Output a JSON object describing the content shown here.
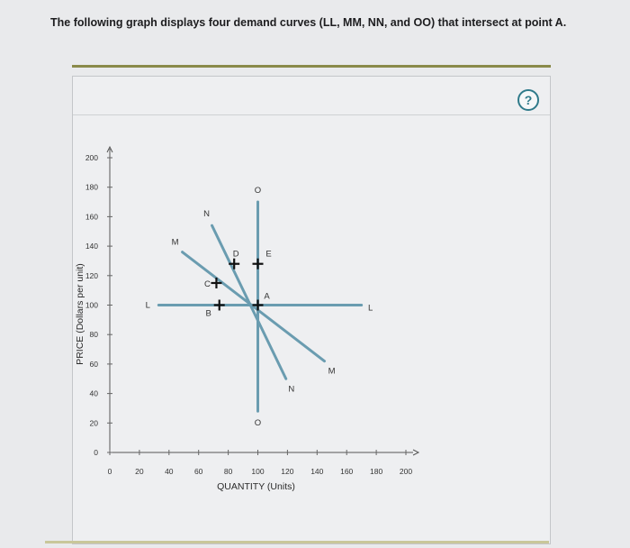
{
  "question": "The following graph displays four demand curves (LL, MM, NN, and OO) that intersect at point A.",
  "help_label": "?",
  "chart_data": {
    "type": "line",
    "xlabel": "QUANTITY (Units)",
    "ylabel": "PRICE (Dollars per unit)",
    "xlim": [
      0,
      200
    ],
    "ylim": [
      0,
      200
    ],
    "x_ticks": [
      0,
      20,
      40,
      60,
      80,
      100,
      120,
      140,
      160,
      180,
      200
    ],
    "y_ticks": [
      0,
      20,
      40,
      60,
      80,
      100,
      120,
      140,
      160,
      180,
      200
    ],
    "grid": false,
    "series": [
      {
        "name": "L",
        "label_start": "L",
        "label_end": "L",
        "points": [
          [
            33,
            100
          ],
          [
            170,
            100
          ]
        ],
        "color": "#6a9cb0"
      },
      {
        "name": "M",
        "label_start": "M",
        "label_end": "M",
        "points": [
          [
            49,
            136
          ],
          [
            145,
            62
          ]
        ],
        "color": "#6a9cb0"
      },
      {
        "name": "N",
        "label_start": "N",
        "label_end": "N",
        "points": [
          [
            69,
            154
          ],
          [
            119,
            50
          ]
        ],
        "color": "#6a9cb0"
      },
      {
        "name": "O",
        "label_start": "O",
        "label_end": "O",
        "points": [
          [
            100,
            170
          ],
          [
            100,
            28
          ]
        ],
        "color": "#6a9cb0"
      }
    ],
    "markers": [
      {
        "name": "A",
        "x": 100,
        "y": 100
      },
      {
        "name": "B",
        "x": 74,
        "y": 100
      },
      {
        "name": "C",
        "x": 72,
        "y": 115
      },
      {
        "name": "D",
        "x": 84,
        "y": 128
      },
      {
        "name": "E",
        "x": 100,
        "y": 128
      }
    ]
  }
}
